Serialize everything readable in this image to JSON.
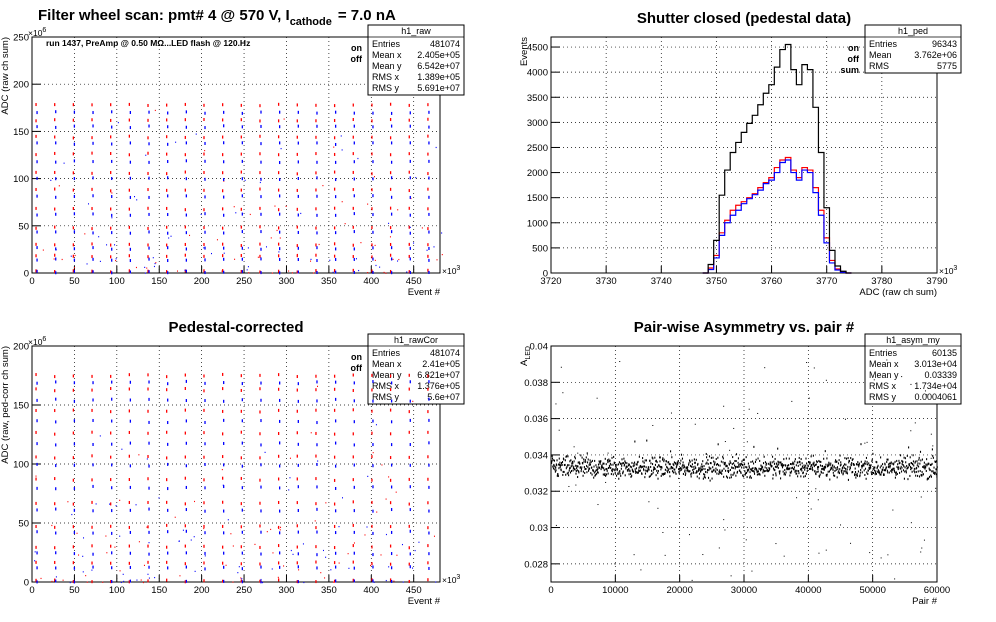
{
  "chart_data": [
    {
      "id": "h1_raw",
      "type": "scatter",
      "title": "Filter wheel scan: pmt#   4 @   570 V, I",
      "title_sub": "cathode",
      "title_tail": "= 7.0 nA",
      "annotation": "run 1437, PreAmp @ 0.50 MΩ...LED flash @  120.Hz",
      "xlabel": "Event #",
      "ylabel": "ADC (raw ch sum)",
      "x_exponent": "×10",
      "x_exponent_power": "3",
      "y_exponent": "×10",
      "y_exponent_power": "6",
      "xlim": [
        0,
        481
      ],
      "ylim": [
        0,
        250
      ],
      "x_ticks": [
        0,
        50,
        100,
        150,
        200,
        250,
        300,
        350,
        400,
        450
      ],
      "y_ticks": [
        0,
        50,
        100,
        150,
        200,
        250
      ],
      "grid": true,
      "legend": {
        "position": "top-right",
        "entries": [
          {
            "label": "on",
            "color": "#ff0000"
          },
          {
            "label": "off",
            "color": "#0000ff"
          }
        ]
      },
      "stats": {
        "name": "h1_raw",
        "rows": [
          [
            "Entries",
            "481074"
          ],
          [
            "Mean x",
            "2.405e+05"
          ],
          [
            "Mean y",
            "6.542e+07"
          ],
          [
            "RMS x",
            "1.389e+05"
          ],
          [
            "RMS y",
            "5.691e+07"
          ]
        ]
      },
      "level_series": [
        {
          "name": "on",
          "color": "#ff0000",
          "levels": [
            2,
            18,
            30,
            48,
            68,
            88,
            106,
            126,
            144,
            162,
            178
          ]
        },
        {
          "name": "off",
          "color": "#0000ff",
          "levels": [
            1,
            14,
            26,
            43,
            62,
            81,
            100,
            118,
            137,
            155,
            170
          ]
        }
      ],
      "level_period": 22
    },
    {
      "id": "h1_ped",
      "type": "line",
      "title": "Shutter closed (pedestal data)",
      "xlabel": "ADC (raw ch sum)",
      "ylabel": "Events",
      "x_exponent": "×10",
      "x_exponent_power": "3",
      "xlim": [
        3720,
        3790
      ],
      "ylim": [
        0,
        4700
      ],
      "x_ticks": [
        3720,
        3730,
        3740,
        3750,
        3760,
        3770,
        3780,
        3790
      ],
      "y_ticks": [
        0,
        500,
        1000,
        1500,
        2000,
        2500,
        3000,
        3500,
        4000,
        4500
      ],
      "grid": true,
      "legend": {
        "position": "top-right",
        "entries": [
          {
            "label": "on",
            "color": "#ff0000"
          },
          {
            "label": "off",
            "color": "#0000ff"
          },
          {
            "label": "sum",
            "color": "#000000"
          }
        ]
      },
      "stats": {
        "name": "h1_ped",
        "rows": [
          [
            "Entries",
            "96343"
          ],
          [
            "Mean",
            "3.762e+06"
          ],
          [
            "RMS",
            "5775"
          ]
        ]
      },
      "x": [
        3748,
        3749,
        3750,
        3751,
        3752,
        3753,
        3754,
        3755,
        3756,
        3757,
        3758,
        3759,
        3760,
        3761,
        3762,
        3763,
        3764,
        3765,
        3766,
        3767,
        3768,
        3769,
        3770,
        3771,
        3772,
        3773,
        3774
      ],
      "series": [
        {
          "name": "on",
          "color": "#ff0000",
          "values": [
            0,
            100,
            350,
            800,
            1050,
            1250,
            1350,
            1420,
            1500,
            1580,
            1700,
            1800,
            1900,
            2100,
            2250,
            2300,
            2050,
            1900,
            2100,
            2050,
            1700,
            1250,
            700,
            250,
            80,
            20,
            0
          ]
        },
        {
          "name": "off",
          "color": "#0000ff",
          "values": [
            0,
            70,
            300,
            750,
            1000,
            1150,
            1250,
            1380,
            1480,
            1560,
            1650,
            1780,
            1850,
            2000,
            2200,
            2250,
            2000,
            1850,
            2050,
            2000,
            1600,
            1150,
            600,
            200,
            60,
            15,
            0
          ]
        },
        {
          "name": "sum",
          "color": "#000000",
          "values": [
            0,
            170,
            650,
            1550,
            2050,
            2400,
            2600,
            2800,
            2980,
            3140,
            3350,
            3580,
            3750,
            4100,
            4450,
            4550,
            4050,
            3750,
            4150,
            4050,
            3300,
            2400,
            1300,
            450,
            140,
            35,
            0
          ]
        }
      ]
    },
    {
      "id": "h1_rawCor",
      "type": "scatter",
      "title": "Pedestal-corrected",
      "xlabel": "Event #",
      "ylabel": "ADC (raw, ped-corr ch sum)",
      "x_exponent": "×10",
      "x_exponent_power": "3",
      "y_exponent": "×10",
      "y_exponent_power": "6",
      "xlim": [
        0,
        481
      ],
      "ylim": [
        0,
        200
      ],
      "x_ticks": [
        0,
        50,
        100,
        150,
        200,
        250,
        300,
        350,
        400,
        450
      ],
      "y_ticks": [
        0,
        50,
        100,
        150,
        200
      ],
      "grid": true,
      "legend": {
        "position": "top-right",
        "entries": [
          {
            "label": "on",
            "color": "#ff0000"
          },
          {
            "label": "off",
            "color": "#0000ff"
          }
        ]
      },
      "stats": {
        "name": "h1_rawCor",
        "rows": [
          [
            "Entries",
            "481074"
          ],
          [
            "Mean x",
            "2.41e+05"
          ],
          [
            "Mean y",
            "6.821e+07"
          ],
          [
            "RMS x",
            "1.376e+05"
          ],
          [
            "RMS y",
            "5.6e+07"
          ]
        ]
      },
      "level_series": [
        {
          "name": "on",
          "color": "#ff0000",
          "levels": [
            1,
            16,
            30,
            47,
            67,
            87,
            106,
            126,
            145,
            163,
            175
          ]
        },
        {
          "name": "off",
          "color": "#0000ff",
          "levels": [
            0,
            12,
            24,
            42,
            61,
            80,
            99,
            117,
            136,
            154,
            169
          ]
        }
      ],
      "level_period": 22
    },
    {
      "id": "h1_asym_my",
      "type": "scatter",
      "title": "Pair-wise Asymmetry vs. pair #",
      "xlabel": "Pair #",
      "ylabel": "A",
      "ylabel_sub": "LED",
      "xlim": [
        0,
        60000
      ],
      "ylim": [
        0.027,
        0.04
      ],
      "x_ticks": [
        0,
        10000,
        20000,
        30000,
        40000,
        50000,
        60000
      ],
      "y_ticks": [
        0.028,
        0.03,
        0.032,
        0.034,
        0.036,
        0.038,
        0.04
      ],
      "y_tick_labels": [
        "0.028",
        "0.03",
        "0.032",
        "0.034",
        "0.036",
        "0.038",
        "0.04"
      ],
      "grid": true,
      "stats": {
        "name": "h1_asym_my",
        "rows": [
          [
            "Entries",
            "60135"
          ],
          [
            "Mean x",
            "3.013e+04"
          ],
          [
            "Mean y",
            "0.03339"
          ],
          [
            "RMS x",
            "1.734e+04"
          ],
          [
            "RMS y",
            "0.0004061"
          ]
        ]
      },
      "band_center": 0.0333,
      "band_spread": 0.0004,
      "color": "#000000"
    }
  ]
}
